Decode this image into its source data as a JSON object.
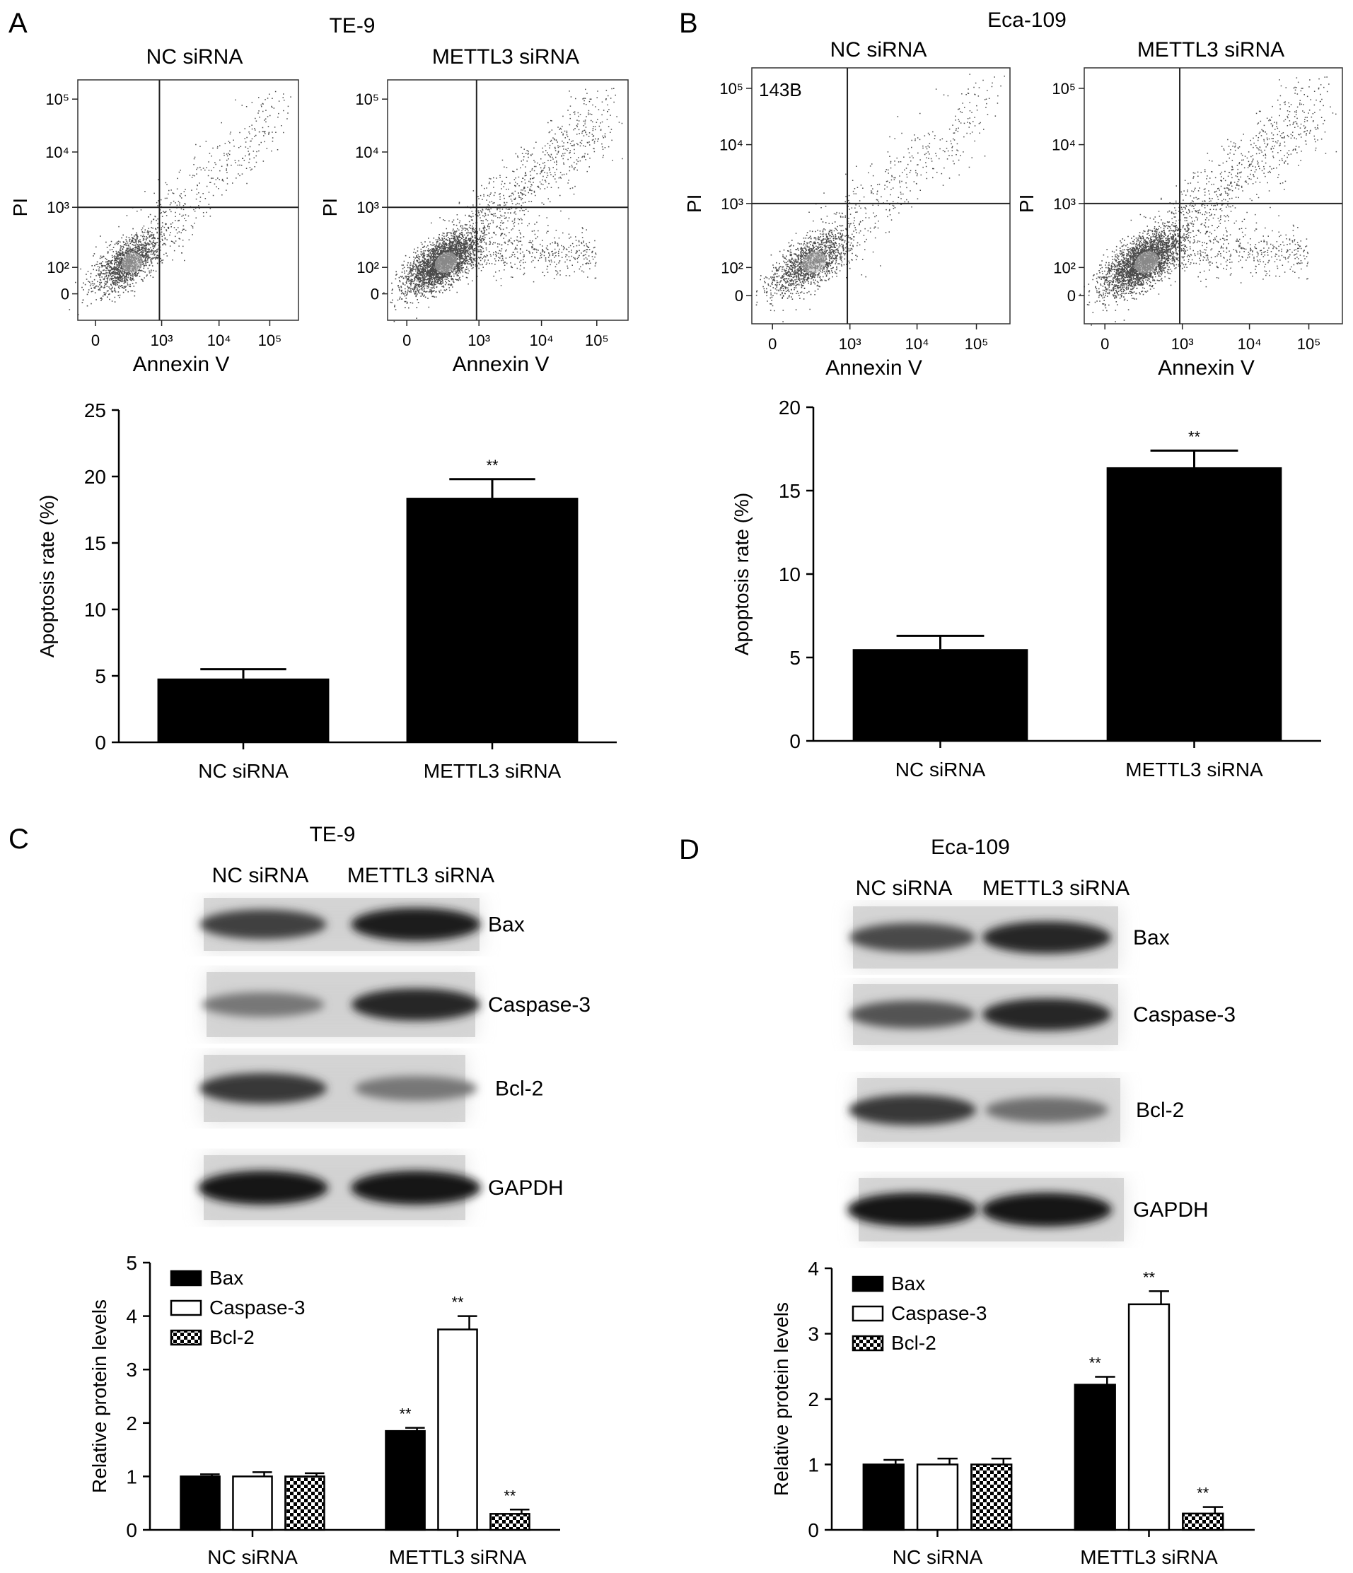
{
  "panels": {
    "A": {
      "letter": "A",
      "cell_line": "TE-9",
      "flow": {
        "left_title": "NC siRNA",
        "right_title": "METTL3 siRNA",
        "xlabel": "Annexin V",
        "ylabel": "PI",
        "inset_label": "",
        "x_ticks": [
          "0",
          "10³",
          "10⁴",
          "10⁵"
        ],
        "y_ticks": [
          "0",
          "10²",
          "10³",
          "10⁴",
          "10⁵"
        ]
      },
      "chart_data": {
        "type": "bar",
        "categories": [
          "NC siRNA",
          "METTL3 siRNA"
        ],
        "values": [
          4.8,
          18.4
        ],
        "errors": [
          0.7,
          1.4
        ],
        "significance": [
          "",
          "**"
        ],
        "ylabel": "Apoptosis rate (%)",
        "ylim": [
          0,
          25
        ],
        "yticks": [
          0,
          5,
          10,
          15,
          20,
          25
        ],
        "color": "#000000"
      }
    },
    "B": {
      "letter": "B",
      "cell_line": "Eca-109",
      "flow": {
        "left_title": "NC siRNA",
        "right_title": "METTL3 siRNA",
        "xlabel": "Annexin V",
        "ylabel": "PI",
        "inset_label": "143B",
        "x_ticks": [
          "0",
          "10³",
          "10⁴",
          "10⁵"
        ],
        "y_ticks": [
          "0",
          "10²",
          "10³",
          "10⁴",
          "10⁵"
        ]
      },
      "chart_data": {
        "type": "bar",
        "categories": [
          "NC siRNA",
          "METTL3 siRNA"
        ],
        "values": [
          5.5,
          16.4
        ],
        "errors": [
          0.8,
          1.0
        ],
        "significance": [
          "",
          "**"
        ],
        "ylabel": "Apoptosis rate (%)",
        "ylim": [
          0,
          20
        ],
        "yticks": [
          0,
          5,
          10,
          15,
          20
        ],
        "color": "#000000"
      }
    },
    "C": {
      "letter": "C",
      "cell_line": "TE-9",
      "blot": {
        "lane_labels": [
          "NC siRNA",
          "METTL3 siRNA"
        ],
        "bands": [
          {
            "label": "Bax",
            "intensity": [
              0.75,
              0.95
            ]
          },
          {
            "label": "Caspase-3",
            "intensity": [
              0.45,
              0.9
            ]
          },
          {
            "label": "Bcl-2",
            "intensity": [
              0.8,
              0.45
            ]
          },
          {
            "label": "GAPDH",
            "intensity": [
              1.0,
              1.0
            ]
          }
        ]
      },
      "chart_data": {
        "type": "bar",
        "categories": [
          "NC siRNA",
          "METTL3 siRNA"
        ],
        "series": [
          {
            "name": "Bax",
            "values": [
              1.0,
              1.85
            ],
            "errors": [
              0.04,
              0.06
            ],
            "significance": [
              "",
              "**"
            ],
            "fill": "solid"
          },
          {
            "name": "Caspase-3",
            "values": [
              1.0,
              3.75
            ],
            "errors": [
              0.08,
              0.25
            ],
            "significance": [
              "",
              "**"
            ],
            "fill": "open"
          },
          {
            "name": "Bcl-2",
            "values": [
              1.0,
              0.3
            ],
            "errors": [
              0.06,
              0.08
            ],
            "significance": [
              "",
              "**"
            ],
            "fill": "checker"
          }
        ],
        "ylabel": "Relative protein levels",
        "ylim": [
          0,
          5
        ],
        "yticks": [
          0,
          1,
          2,
          3,
          4,
          5
        ],
        "legend": "top-left"
      }
    },
    "D": {
      "letter": "D",
      "cell_line": "Eca-109",
      "blot": {
        "lane_labels": [
          "NC siRNA",
          "METTL3 siRNA"
        ],
        "bands": [
          {
            "label": "Bax",
            "intensity": [
              0.7,
              0.9
            ]
          },
          {
            "label": "Caspase-3",
            "intensity": [
              0.65,
              0.9
            ]
          },
          {
            "label": "Bcl-2",
            "intensity": [
              0.8,
              0.5
            ]
          },
          {
            "label": "GAPDH",
            "intensity": [
              1.0,
              1.0
            ]
          }
        ]
      },
      "chart_data": {
        "type": "bar",
        "categories": [
          "NC siRNA",
          "METTL3 siRNA"
        ],
        "series": [
          {
            "name": "Bax",
            "values": [
              1.0,
              2.22
            ],
            "errors": [
              0.07,
              0.12
            ],
            "significance": [
              "",
              "**"
            ],
            "fill": "solid"
          },
          {
            "name": "Caspase-3",
            "values": [
              1.0,
              3.45
            ],
            "errors": [
              0.09,
              0.2
            ],
            "significance": [
              "",
              "**"
            ],
            "fill": "open"
          },
          {
            "name": "Bcl-2",
            "values": [
              1.0,
              0.25
            ],
            "errors": [
              0.09,
              0.1
            ],
            "significance": [
              "",
              "**"
            ],
            "fill": "checker"
          }
        ],
        "ylabel": "Relative protein levels",
        "ylim": [
          0,
          4
        ],
        "yticks": [
          0,
          1,
          2,
          3,
          4
        ],
        "legend": "top-left"
      }
    }
  }
}
